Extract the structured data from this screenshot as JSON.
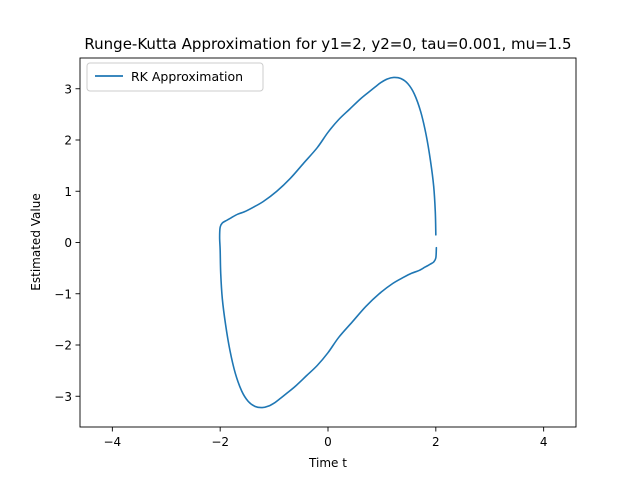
{
  "chart_data": {
    "type": "line",
    "title": "Runge-Kutta Approximation for y1=2, y2=0, tau=0.001, mu=1.5",
    "xlabel": "Time t",
    "ylabel": "Estimated Value",
    "xlim": [
      -4.6,
      4.6
    ],
    "ylim": [
      -3.6,
      3.6
    ],
    "xticks": [
      -4,
      -2,
      0,
      2,
      4
    ],
    "xtick_labels": [
      "−4",
      "−2",
      "0",
      "2",
      "4"
    ],
    "yticks": [
      -3,
      -2,
      -1,
      0,
      1,
      2,
      3
    ],
    "ytick_labels": [
      "−3",
      "−2",
      "−1",
      "0",
      "1",
      "2",
      "3"
    ],
    "grid": false,
    "legend_position": "upper-left",
    "series": [
      {
        "name": "RK Approximation",
        "color": "#1f77b4",
        "x": [
          2.0,
          1.99,
          1.96,
          1.9,
          1.82,
          1.72,
          1.6,
          1.48,
          1.35,
          1.22,
          1.1,
          0.98,
          0.88,
          0.75,
          0.6,
          0.4,
          0.2,
          0.0,
          -0.2,
          -0.45,
          -0.7,
          -0.95,
          -1.2,
          -1.4,
          -1.55,
          -1.68,
          -1.8,
          -1.9,
          -1.96,
          -2.0,
          -2.01,
          -2.0,
          -1.99,
          -1.96,
          -1.9,
          -1.82,
          -1.72,
          -1.6,
          -1.48,
          -1.35,
          -1.22,
          -1.1,
          -0.98,
          -0.88,
          -0.75,
          -0.6,
          -0.4,
          -0.2,
          0.0,
          0.2,
          0.45,
          0.7,
          0.95,
          1.2,
          1.4,
          1.55,
          1.68,
          1.8,
          1.9,
          1.96,
          2.0,
          2.01
        ],
        "y": [
          0.15,
          0.6,
          1.1,
          1.6,
          2.1,
          2.55,
          2.9,
          3.1,
          3.2,
          3.22,
          3.19,
          3.12,
          3.04,
          2.93,
          2.8,
          2.6,
          2.4,
          2.15,
          1.85,
          1.55,
          1.25,
          1.0,
          0.8,
          0.68,
          0.6,
          0.55,
          0.48,
          0.42,
          0.38,
          0.3,
          0.1,
          -0.15,
          -0.6,
          -1.1,
          -1.6,
          -2.1,
          -2.55,
          -2.9,
          -3.1,
          -3.2,
          -3.22,
          -3.19,
          -3.12,
          -3.04,
          -2.93,
          -2.8,
          -2.6,
          -2.4,
          -2.15,
          -1.85,
          -1.55,
          -1.25,
          -1.0,
          -0.8,
          -0.68,
          -0.6,
          -0.55,
          -0.48,
          -0.42,
          -0.38,
          -0.3,
          -0.1
        ]
      }
    ]
  }
}
